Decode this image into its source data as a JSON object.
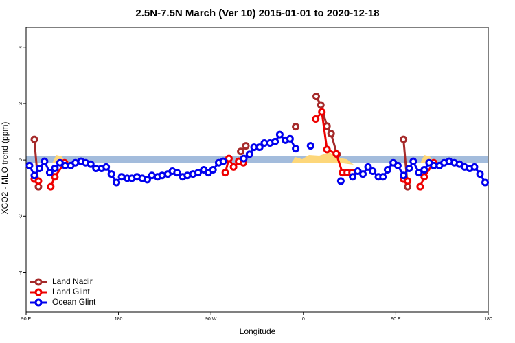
{
  "chart_data": {
    "type": "line",
    "title": "2.5N-7.5N March (Ver 10)   2015-01-01 to 2020-12-18",
    "x_label": "Longitude",
    "y_label": "XCO2 - MLO trend (ppm)",
    "xlim": [
      90,
      540
    ],
    "xticks": [
      {
        "value": 90,
        "label": "90 E"
      },
      {
        "value": 180,
        "label": "180"
      },
      {
        "value": 270,
        "label": "90 W"
      },
      {
        "value": 360,
        "label": "0"
      },
      {
        "value": 450,
        "label": "90 E"
      },
      {
        "value": 540,
        "label": "180"
      }
    ],
    "ylim": [
      -5.4,
      4.7
    ],
    "yticks": [
      -4,
      -2,
      0,
      2,
      4
    ],
    "legend": "bottom-left",
    "series": [
      {
        "name": "Land Nadir",
        "color": "#a52a2a",
        "x": [
          98,
          102,
          null,
          299,
          304,
          null,
          352.5,
          null,
          372.5,
          377,
          383,
          387,
          392.7,
          null,
          457.5,
          461.5
        ],
        "values": [
          0.73,
          -0.95,
          null,
          0.3,
          0.5,
          null,
          1.18,
          null,
          2.25,
          1.95,
          1.2,
          0.93,
          0.2,
          null,
          0.73,
          -0.95
        ]
      },
      {
        "name": "Land Glint",
        "color": "#ee0000",
        "x": [
          98,
          102,
          null,
          114,
          118,
          127.5,
          null,
          284,
          287.5,
          292,
          297,
          301.6,
          null,
          372,
          378,
          383,
          392,
          398,
          402.7,
          407.4,
          null,
          457.5,
          461.5,
          null,
          473.7,
          477.7,
          487
        ],
        "values": [
          -0.68,
          -0.75,
          null,
          -0.95,
          -0.6,
          -0.1,
          null,
          -0.45,
          0.05,
          -0.25,
          -0.05,
          -0.1,
          null,
          1.45,
          1.7,
          0.37,
          0.22,
          -0.45,
          -0.45,
          -0.45,
          null,
          -0.68,
          -0.75,
          null,
          -0.95,
          -0.6,
          -0.1
        ]
      },
      {
        "name": "Ocean Glint",
        "color": "#0000ee",
        "x": [
          93.3,
          98,
          103,
          108,
          113,
          118,
          123,
          128,
          133.5,
          138,
          143.5,
          148,
          153,
          158,
          163.5,
          168,
          173,
          178,
          183,
          188.5,
          193,
          198,
          203,
          208,
          212.5,
          218,
          222.5,
          228,
          232.5,
          237,
          242.5,
          247,
          252.5,
          257.5,
          263,
          267.5,
          272,
          277.5,
          282,
          null,
          302,
          307.5,
          312,
          317.5,
          322,
          327.5,
          332.5,
          337,
          342.5,
          347,
          352.5,
          null,
          367,
          null,
          396.5,
          null,
          408,
          413,
          418,
          423,
          427.5,
          433,
          437.5,
          442,
          447.5,
          452,
          457.5,
          463,
          467,
          472.4,
          477.7,
          482.4,
          487,
          492.5,
          497,
          502,
          507,
          512,
          517,
          522,
          526.6,
          532,
          537
        ],
        "values": [
          -0.2,
          -0.55,
          -0.3,
          -0.05,
          -0.45,
          -0.3,
          -0.1,
          -0.2,
          -0.2,
          -0.1,
          -0.05,
          -0.1,
          -0.15,
          -0.3,
          -0.3,
          -0.25,
          -0.5,
          -0.8,
          -0.6,
          -0.65,
          -0.65,
          -0.6,
          -0.65,
          -0.7,
          -0.55,
          -0.6,
          -0.55,
          -0.5,
          -0.4,
          -0.45,
          -0.6,
          -0.55,
          -0.5,
          -0.45,
          -0.35,
          -0.45,
          -0.35,
          -0.1,
          -0.05,
          null,
          0.05,
          0.2,
          0.45,
          0.45,
          0.6,
          0.6,
          0.65,
          0.9,
          0.7,
          0.75,
          0.4,
          null,
          0.5,
          null,
          -0.75,
          null,
          -0.6,
          -0.4,
          -0.5,
          -0.25,
          -0.4,
          -0.6,
          -0.6,
          -0.35,
          -0.1,
          -0.2,
          -0.55,
          -0.3,
          -0.05,
          -0.45,
          -0.35,
          -0.1,
          -0.2,
          -0.2,
          -0.1,
          -0.05,
          -0.1,
          -0.15,
          -0.25,
          -0.3,
          -0.25,
          -0.5,
          -0.8
        ]
      }
    ]
  }
}
